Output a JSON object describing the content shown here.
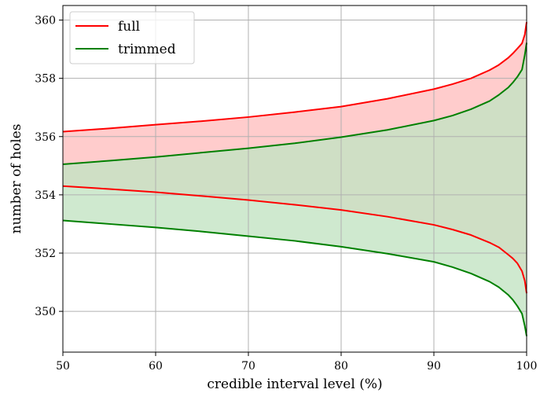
{
  "chart_data": {
    "type": "line",
    "title": "",
    "xlabel": "credible interval level (%)",
    "ylabel": "number of holes",
    "xlim": [
      50,
      100
    ],
    "ylim": [
      348.6,
      360.5
    ],
    "x_ticks": [
      "50",
      "60",
      "70",
      "80",
      "90",
      "100"
    ],
    "y_ticks": [
      "350",
      "352",
      "354",
      "356",
      "358",
      "360"
    ],
    "grid": true,
    "legend_position": "top-left",
    "x": [
      50,
      55,
      60,
      65,
      70,
      75,
      80,
      85,
      90,
      92,
      94,
      96,
      97,
      98,
      98.5,
      99,
      99.5,
      99.8,
      100
    ],
    "series": [
      {
        "name": "full",
        "color": "#ff0000",
        "fill": "#ffcccc",
        "upper": [
          356.17,
          356.28,
          356.41,
          356.53,
          356.67,
          356.84,
          357.03,
          357.3,
          357.63,
          357.8,
          358.0,
          358.28,
          358.46,
          358.7,
          358.85,
          359.02,
          359.2,
          359.5,
          359.93
        ],
        "lower": [
          354.3,
          354.2,
          354.09,
          353.96,
          353.82,
          353.66,
          353.48,
          353.25,
          352.97,
          352.81,
          352.62,
          352.36,
          352.2,
          351.95,
          351.82,
          351.65,
          351.38,
          351.05,
          350.62
        ]
      },
      {
        "name": "trimmed",
        "color": "#008000",
        "fill": "#c3e3c3",
        "upper": [
          355.05,
          355.17,
          355.3,
          355.45,
          355.6,
          355.77,
          355.98,
          356.23,
          356.55,
          356.72,
          356.94,
          357.22,
          357.43,
          357.68,
          357.85,
          358.05,
          358.3,
          358.8,
          359.22
        ],
        "lower": [
          353.12,
          353.0,
          352.88,
          352.74,
          352.58,
          352.42,
          352.22,
          351.98,
          351.7,
          351.52,
          351.3,
          351.02,
          350.83,
          350.57,
          350.4,
          350.18,
          349.92,
          349.5,
          349.15
        ]
      }
    ]
  }
}
